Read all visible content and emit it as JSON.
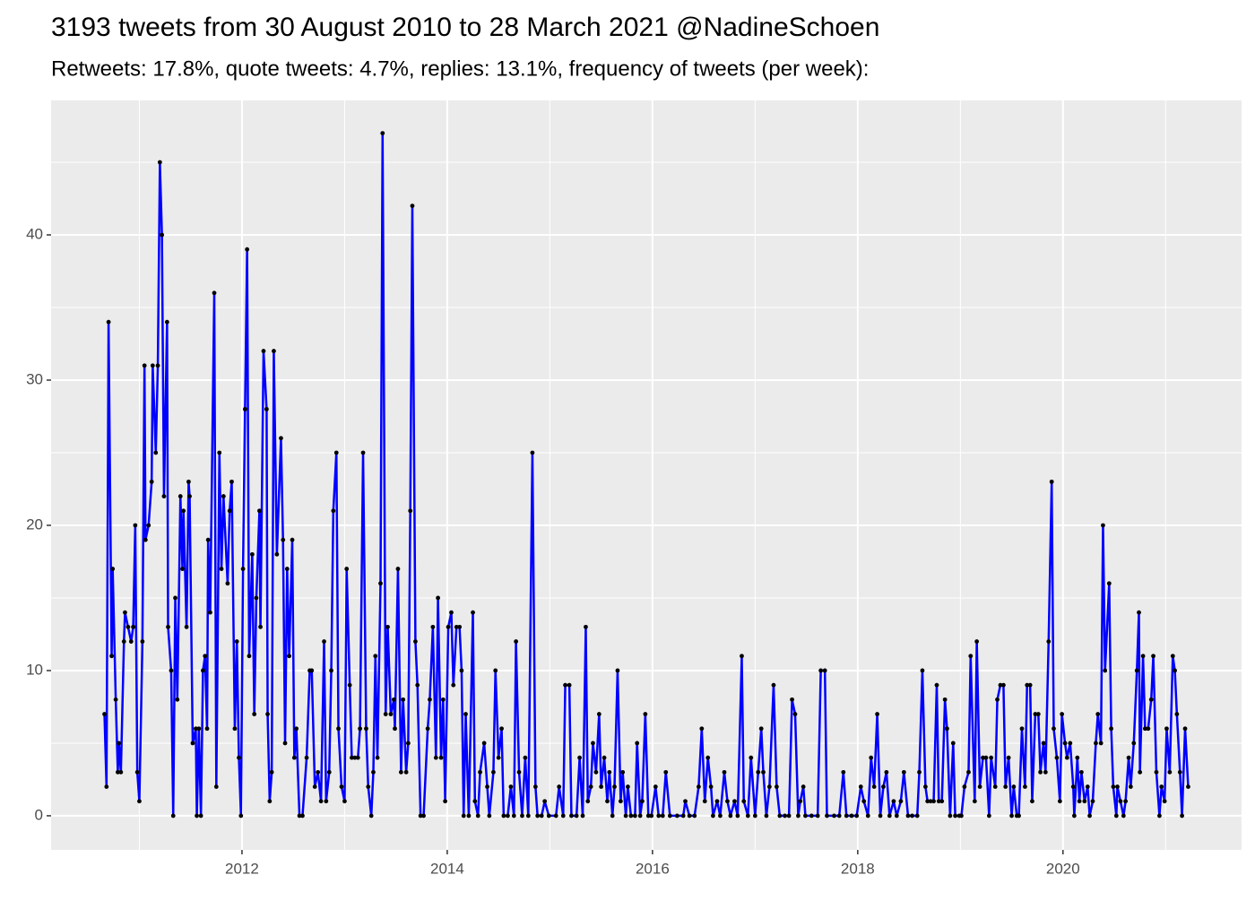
{
  "chart_data": {
    "type": "line",
    "title": "3193 tweets from 30 August 2010 to 28 March 2021 @NadineSchoen",
    "subtitle": "Retweets: 17.8%, quote tweets: 4.7%, replies: 13.1%, frequency of tweets (per week):",
    "color": "#0000ff",
    "point_color": "#000000",
    "grid": true,
    "xlim": [
      2010.14,
      2021.74
    ],
    "ylim": [
      -2.35,
      49.26
    ],
    "xticks": [
      2012,
      2014,
      2016,
      2018,
      2020
    ],
    "yticks": [
      0,
      10,
      20,
      30,
      40
    ],
    "x": [
      2010.66,
      2010.68,
      2010.7,
      2010.73,
      2010.74,
      2010.77,
      2010.79,
      2010.8,
      2010.82,
      2010.85,
      2010.86,
      2010.89,
      2010.92,
      2010.94,
      2010.96,
      2010.98,
      2011.0,
      2011.03,
      2011.05,
      2011.06,
      2011.09,
      2011.12,
      2011.13,
      2011.16,
      2011.18,
      2011.2,
      2011.22,
      2011.24,
      2011.27,
      2011.28,
      2011.31,
      2011.33,
      2011.35,
      2011.37,
      2011.4,
      2011.42,
      2011.43,
      2011.46,
      2011.48,
      2011.49,
      2011.52,
      2011.55,
      2011.56,
      2011.58,
      2011.6,
      2011.62,
      2011.64,
      2011.66,
      2011.67,
      2011.69,
      2011.73,
      2011.75,
      2011.78,
      2011.8,
      2011.82,
      2011.86,
      2011.88,
      2011.9,
      2011.93,
      2011.95,
      2011.97,
      2011.99,
      2012.01,
      2012.03,
      2012.05,
      2012.07,
      2012.1,
      2012.12,
      2012.14,
      2012.17,
      2012.18,
      2012.21,
      2012.24,
      2012.25,
      2012.27,
      2012.29,
      2012.31,
      2012.34,
      2012.38,
      2012.4,
      2012.42,
      2012.44,
      2012.46,
      2012.49,
      2012.51,
      2012.53,
      2012.56,
      2012.59,
      2012.63,
      2012.66,
      2012.68,
      2012.71,
      2012.74,
      2012.77,
      2012.8,
      2012.82,
      2012.85,
      2012.87,
      2012.89,
      2012.92,
      2012.94,
      2012.97,
      2013.0,
      2013.02,
      2013.05,
      2013.07,
      2013.1,
      2013.13,
      2013.15,
      2013.18,
      2013.21,
      2013.23,
      2013.26,
      2013.28,
      2013.3,
      2013.32,
      2013.35,
      2013.37,
      2013.4,
      2013.42,
      2013.45,
      2013.48,
      2013.49,
      2013.52,
      2013.55,
      2013.57,
      2013.6,
      2013.62,
      2013.64,
      2013.66,
      2013.69,
      2013.71,
      2013.74,
      2013.77,
      2013.81,
      2013.83,
      2013.86,
      2013.89,
      2013.91,
      2013.94,
      2013.96,
      2013.98,
      2014.01,
      2014.04,
      2014.06,
      2014.09,
      2014.12,
      2014.14,
      2014.16,
      2014.18,
      2014.21,
      2014.25,
      2014.27,
      2014.3,
      2014.32,
      2014.36,
      2014.39,
      2014.41,
      2014.45,
      2014.47,
      2014.5,
      2014.53,
      2014.55,
      2014.59,
      2014.62,
      2014.65,
      2014.67,
      2014.7,
      2014.73,
      2014.76,
      2014.79,
      2014.83,
      2014.86,
      2014.88,
      2014.92,
      2014.95,
      2014.99,
      2015.06,
      2015.09,
      2015.13,
      2015.15,
      2015.19,
      2015.21,
      2015.26,
      2015.29,
      2015.32,
      2015.35,
      2015.37,
      2015.4,
      2015.42,
      2015.45,
      2015.48,
      2015.5,
      2015.53,
      2015.56,
      2015.58,
      2015.61,
      2015.63,
      2015.66,
      2015.69,
      2015.71,
      2015.74,
      2015.76,
      2015.79,
      2015.83,
      2015.85,
      2015.88,
      2015.9,
      2015.93,
      2015.96,
      2015.99,
      2016.03,
      2016.06,
      2016.1,
      2016.13,
      2016.17,
      2016.24,
      2016.3,
      2016.32,
      2016.36,
      2016.41,
      2016.45,
      2016.48,
      2016.51,
      2016.54,
      2016.57,
      2016.59,
      2016.63,
      2016.66,
      2016.7,
      2016.73,
      2016.76,
      2016.8,
      2016.83,
      2016.87,
      2016.89,
      2016.93,
      2016.96,
      2017.0,
      2017.03,
      2017.06,
      2017.08,
      2017.11,
      2017.14,
      2017.18,
      2017.21,
      2017.24,
      2017.29,
      2017.33,
      2017.36,
      2017.39,
      2017.42,
      2017.44,
      2017.47,
      2017.49,
      2017.55,
      2017.61,
      2017.64,
      2017.68,
      2017.7,
      2017.77,
      2017.82,
      2017.86,
      2017.89,
      2017.94,
      2017.99,
      2018.03,
      2018.06,
      2018.1,
      2018.13,
      2018.16,
      2018.19,
      2018.22,
      2018.25,
      2018.28,
      2018.31,
      2018.35,
      2018.38,
      2018.42,
      2018.45,
      2018.49,
      2018.53,
      2018.58,
      2018.6,
      2018.63,
      2018.66,
      2018.68,
      2018.71,
      2018.74,
      2018.77,
      2018.79,
      2018.82,
      2018.85,
      2018.87,
      2018.9,
      2018.93,
      2018.95,
      2018.99,
      2019.01,
      2019.04,
      2019.08,
      2019.1,
      2019.14,
      2019.16,
      2019.19,
      2019.22,
      2019.25,
      2019.28,
      2019.3,
      2019.34,
      2019.36,
      2019.39,
      2019.42,
      2019.44,
      2019.47,
      2019.5,
      2019.52,
      2019.55,
      2019.57,
      2019.6,
      2019.63,
      2019.65,
      2019.68,
      2019.7,
      2019.73,
      2019.76,
      2019.78,
      2019.81,
      2019.83,
      2019.86,
      2019.89,
      2019.91,
      2019.94,
      2019.97,
      2019.99,
      2020.02,
      2020.04,
      2020.07,
      2020.1,
      2020.11,
      2020.14,
      2020.16,
      2020.18,
      2020.21,
      2020.24,
      2020.26,
      2020.29,
      2020.32,
      2020.34,
      2020.37,
      2020.39,
      2020.41,
      2020.45,
      2020.47,
      2020.49,
      2020.52,
      2020.53,
      2020.56,
      2020.59,
      2020.61,
      2020.64,
      2020.66,
      2020.69,
      2020.72,
      2020.74,
      2020.75,
      2020.78,
      2020.8,
      2020.83,
      2020.86,
      2020.88,
      2020.91,
      2020.94,
      2020.96,
      2020.99,
      2021.01,
      2021.04,
      2021.07,
      2021.09,
      2021.11,
      2021.14,
      2021.16,
      2021.19,
      2021.22
    ],
    "values": [
      7,
      2,
      34,
      11,
      17,
      8,
      3,
      5,
      3,
      12,
      14,
      13,
      12,
      13,
      20,
      3,
      1,
      12,
      31,
      19,
      20,
      23,
      31,
      25,
      31,
      45,
      40,
      22,
      34,
      13,
      10,
      0,
      15,
      8,
      22,
      17,
      21,
      13,
      23,
      22,
      5,
      6,
      0,
      6,
      0,
      10,
      11,
      6,
      19,
      14,
      36,
      2,
      25,
      17,
      22,
      16,
      21,
      23,
      6,
      12,
      4,
      0,
      17,
      28,
      39,
      11,
      18,
      7,
      15,
      21,
      13,
      32,
      28,
      7,
      1,
      3,
      32,
      18,
      26,
      19,
      5,
      17,
      11,
      19,
      4,
      6,
      0,
      0,
      4,
      10,
      10,
      2,
      3,
      1,
      12,
      1,
      3,
      10,
      21,
      25,
      6,
      2,
      1,
      17,
      9,
      4,
      4,
      4,
      6,
      25,
      6,
      2,
      0,
      3,
      11,
      4,
      16,
      47,
      7,
      13,
      7,
      8,
      6,
      17,
      3,
      8,
      3,
      5,
      21,
      42,
      12,
      9,
      0,
      0,
      6,
      8,
      13,
      4,
      15,
      4,
      8,
      1,
      13,
      14,
      9,
      13,
      13,
      10,
      0,
      7,
      0,
      14,
      1,
      0,
      3,
      5,
      2,
      0,
      3,
      10,
      4,
      6,
      0,
      0,
      2,
      0,
      12,
      3,
      0,
      4,
      0,
      25,
      2,
      0,
      0,
      1,
      0,
      0,
      2,
      0,
      9,
      9,
      0,
      0,
      4,
      0,
      13,
      1,
      2,
      5,
      3,
      7,
      2,
      4,
      1,
      3,
      0,
      2,
      10,
      1,
      3,
      0,
      2,
      0,
      0,
      5,
      0,
      1,
      7,
      0,
      0,
      2,
      0,
      0,
      3,
      0,
      0,
      0,
      1,
      0,
      0,
      2,
      6,
      1,
      4,
      2,
      0,
      1,
      0,
      3,
      1,
      0,
      1,
      0,
      11,
      1,
      0,
      4,
      0,
      3,
      6,
      3,
      0,
      2,
      9,
      2,
      0,
      0,
      0,
      8,
      7,
      0,
      1,
      2,
      0,
      0,
      0,
      10,
      10,
      0,
      0,
      0,
      3,
      0,
      0,
      0,
      2,
      1,
      0,
      4,
      2,
      7,
      0,
      2,
      3,
      0,
      1,
      0,
      1,
      3,
      0,
      0,
      0,
      3,
      10,
      2,
      1,
      1,
      1,
      9,
      1,
      1,
      8,
      6,
      0,
      5,
      0,
      0,
      0,
      2,
      3,
      11,
      1,
      12,
      2,
      4,
      4,
      0,
      4,
      2,
      8,
      9,
      9,
      2,
      4,
      0,
      2,
      0,
      0,
      6,
      2,
      9,
      9,
      1,
      7,
      7,
      3,
      5,
      3,
      12,
      23,
      6,
      4,
      1,
      7,
      5,
      4,
      5,
      2,
      0,
      4,
      1,
      3,
      1,
      2,
      0,
      1,
      5,
      7,
      5,
      20,
      10,
      16,
      6,
      2,
      0,
      2,
      1,
      0,
      1,
      4,
      2,
      5,
      10,
      14,
      3,
      11,
      6,
      6,
      8,
      11,
      3,
      0,
      2,
      1,
      6,
      3,
      11,
      10,
      7,
      3,
      0,
      6,
      2
    ]
  }
}
